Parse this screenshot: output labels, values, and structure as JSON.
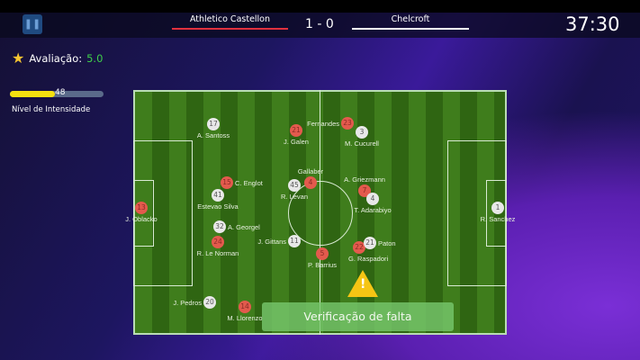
{
  "header": {
    "home_team": "Athletico Castellon",
    "away_team": "Chelcroft",
    "score": "1 - 0",
    "clock": "37:30",
    "home_color": "#e0313e",
    "away_color": "#ffffff"
  },
  "rating": {
    "label": "Avaliação:",
    "value": "5.0"
  },
  "intensity": {
    "value": 48,
    "label": "Nível de Intensidade"
  },
  "players": [
    {
      "number": "21",
      "name": "J. Galen",
      "team": "red"
    },
    {
      "number": "23",
      "name": "Fernandes",
      "team": "red"
    },
    {
      "number": "15",
      "name": "C. Englot",
      "team": "red"
    },
    {
      "number": "4",
      "name": "Gallaber",
      "team": "red"
    },
    {
      "number": "13",
      "name": "J. Oblacko",
      "team": "red"
    },
    {
      "number": "7",
      "name": "A. Griezmann",
      "team": "red"
    },
    {
      "number": "24",
      "name": "R. Le Norman",
      "team": "red"
    },
    {
      "number": "5",
      "name": "P. Barrius",
      "team": "red"
    },
    {
      "number": "22",
      "name": "G. Raspadori",
      "team": "red"
    },
    {
      "number": "14",
      "name": "M. Llorenzo",
      "team": "red"
    },
    {
      "number": "17",
      "name": "A. Santoss",
      "team": "white"
    },
    {
      "number": "3",
      "name": "M. Cucurell",
      "team": "white"
    },
    {
      "number": "41",
      "name": "Estevao Silva",
      "team": "white"
    },
    {
      "number": "45",
      "name": "R. Levan",
      "team": "white"
    },
    {
      "number": "4",
      "name": "T. Adarabiyo",
      "team": "white"
    },
    {
      "number": "1",
      "name": "R. Sanchez",
      "team": "white"
    },
    {
      "number": "32",
      "name": "A. Georgel",
      "team": "white"
    },
    {
      "number": "11",
      "name": "J. Gittans",
      "team": "white"
    },
    {
      "number": "21",
      "name": "Paton",
      "team": "white"
    },
    {
      "number": "20",
      "name": "J. Pedros",
      "team": "white"
    }
  ],
  "foul_check_button": "Verificação de falta",
  "warning_icon": "warning-triangle-icon"
}
